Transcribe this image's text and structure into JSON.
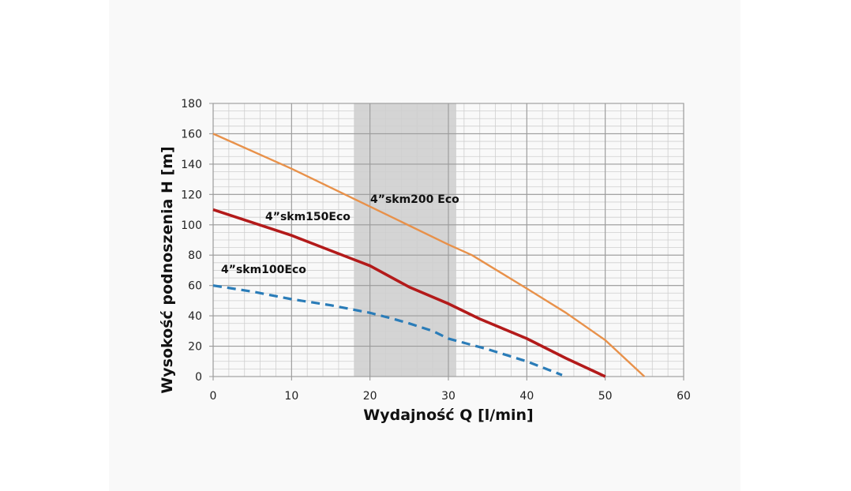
{
  "chart_data": {
    "type": "line",
    "title": "",
    "xlabel": "Wydajność Q [l/min]",
    "ylabel": "Wysokość podnoszenia H [m]",
    "xlim": [
      0,
      60
    ],
    "ylim": [
      0,
      180
    ],
    "xticks": [
      0,
      10,
      20,
      30,
      40,
      50,
      60
    ],
    "yticks": [
      0,
      20,
      40,
      60,
      80,
      100,
      120,
      140,
      160,
      180
    ],
    "minor_x_step": 2,
    "minor_y_step": 5,
    "grid": true,
    "shaded_range": {
      "x": [
        18,
        31
      ]
    },
    "series": [
      {
        "name": "4”skm200 Eco",
        "color": "#e8914a",
        "style": "solid",
        "x": [
          0,
          10,
          20,
          30,
          33,
          40,
          45,
          50,
          55
        ],
        "y": [
          160,
          137,
          112,
          87,
          80,
          58,
          42,
          24,
          0
        ]
      },
      {
        "name": "4”skm150Eco",
        "color": "#b31a1a",
        "style": "solid",
        "x": [
          0,
          10,
          15,
          18,
          20,
          25,
          30,
          34,
          40,
          45,
          50
        ],
        "y": [
          110,
          93,
          83,
          77,
          73,
          59,
          48,
          38,
          25,
          12,
          0
        ]
      },
      {
        "name": "4”skm100Eco",
        "color": "#2a7cb8",
        "style": "dashed",
        "x": [
          0,
          5,
          10,
          15,
          20,
          23,
          25,
          28,
          30,
          35,
          40,
          44.5
        ],
        "y": [
          60,
          56,
          51,
          47,
          42,
          38,
          35,
          30,
          25,
          18,
          10,
          1
        ]
      }
    ]
  }
}
